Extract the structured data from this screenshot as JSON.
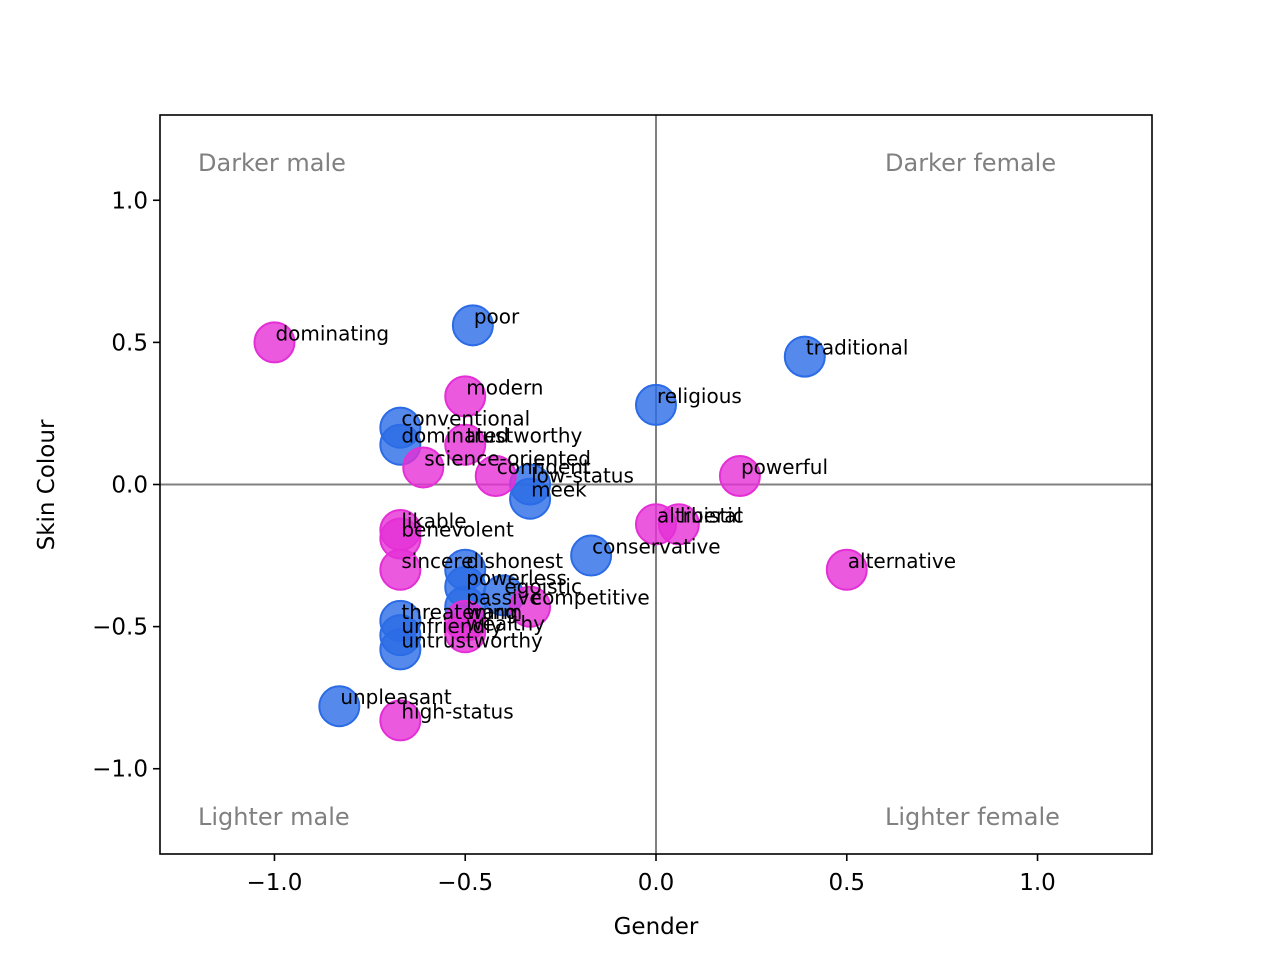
{
  "chart_data": {
    "type": "scatter",
    "title": "",
    "xlabel": "Gender",
    "ylabel": "Skin Colour",
    "xlim": [
      -1.3,
      1.3
    ],
    "ylim": [
      -1.3,
      1.3
    ],
    "xticks": [
      -1.0,
      -0.5,
      0.0,
      0.5,
      1.0
    ],
    "yticks": [
      -1.0,
      -0.5,
      0.0,
      0.5,
      1.0
    ],
    "tick_format": {
      "-1": "−1.0",
      "-0.5": "−0.5",
      "0": "0.0",
      "0.5": "0.5",
      "1": "1.0"
    },
    "xtick_labels": [
      "−1.0",
      "−0.5",
      "0.0",
      "0.5",
      "1.0"
    ],
    "ytick_labels": [
      "−1.0",
      "−0.5",
      "0.0",
      "0.5",
      "1.0"
    ],
    "grid": false,
    "reference_lines": {
      "x": 0,
      "y": 0
    },
    "quadrant_labels": {
      "top_left": "Darker male",
      "top_right": "Darker female",
      "bottom_left": "Lighter male",
      "bottom_right": "Lighter female"
    },
    "series": [
      {
        "name": "blue",
        "color": "#2b6be6",
        "points": [
          {
            "label": "poor",
            "x": -0.48,
            "y": 0.56
          },
          {
            "label": "traditional",
            "x": 0.39,
            "y": 0.45
          },
          {
            "label": "religious",
            "x": 0.0,
            "y": 0.28
          },
          {
            "label": "conventional",
            "x": -0.67,
            "y": 0.2
          },
          {
            "label": "dominated",
            "x": -0.67,
            "y": 0.14
          },
          {
            "label": "low-status",
            "x": -0.33,
            "y": 0.0
          },
          {
            "label": "meek",
            "x": -0.33,
            "y": -0.05
          },
          {
            "label": "conservative",
            "x": -0.17,
            "y": -0.25
          },
          {
            "label": "dishonest",
            "x": -0.5,
            "y": -0.3
          },
          {
            "label": "powerless",
            "x": -0.5,
            "y": -0.36
          },
          {
            "label": "egoistic",
            "x": -0.4,
            "y": -0.39
          },
          {
            "label": "passive",
            "x": -0.5,
            "y": -0.43
          },
          {
            "label": "threatening",
            "x": -0.67,
            "y": -0.48
          },
          {
            "label": "unfriendly",
            "x": -0.67,
            "y": -0.53
          },
          {
            "label": "untrustworthy",
            "x": -0.67,
            "y": -0.58
          },
          {
            "label": "unpleasant",
            "x": -0.83,
            "y": -0.78
          }
        ]
      },
      {
        "name": "magenta",
        "color": "#e52fd6",
        "points": [
          {
            "label": "dominating",
            "x": -1.0,
            "y": 0.5
          },
          {
            "label": "modern",
            "x": -0.5,
            "y": 0.31
          },
          {
            "label": "trustworthy",
            "x": -0.5,
            "y": 0.14
          },
          {
            "label": "science-oriented",
            "x": -0.61,
            "y": 0.06
          },
          {
            "label": "confident",
            "x": -0.42,
            "y": 0.03
          },
          {
            "label": "powerful",
            "x": 0.22,
            "y": 0.03
          },
          {
            "label": "altruistic",
            "x": 0.0,
            "y": -0.14
          },
          {
            "label": "liberal",
            "x": 0.06,
            "y": -0.14
          },
          {
            "label": "likable",
            "x": -0.67,
            "y": -0.16
          },
          {
            "label": "benevolent",
            "x": -0.67,
            "y": -0.19
          },
          {
            "label": "sincere",
            "x": -0.67,
            "y": -0.3
          },
          {
            "label": "alternative",
            "x": 0.5,
            "y": -0.3
          },
          {
            "label": "competitive",
            "x": -0.33,
            "y": -0.43
          },
          {
            "label": "warm",
            "x": -0.5,
            "y": -0.48
          },
          {
            "label": "wealthy",
            "x": -0.5,
            "y": -0.52
          },
          {
            "label": "high-status",
            "x": -0.67,
            "y": -0.83
          }
        ]
      }
    ]
  }
}
